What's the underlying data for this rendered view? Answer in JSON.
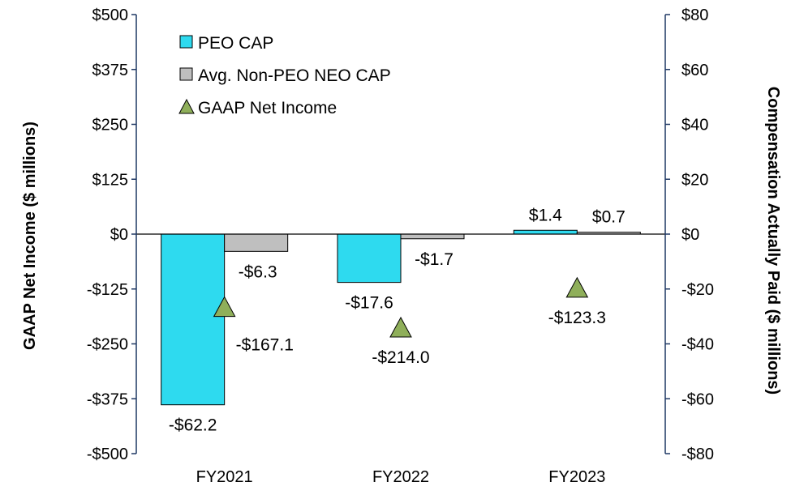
{
  "chart_data": {
    "type": "bar",
    "categories": [
      "FY2021",
      "FY2022",
      "FY2023"
    ],
    "series": [
      {
        "name": "PEO CAP",
        "axis": "right",
        "kind": "bar",
        "color": "#2EDAEF",
        "values": [
          -62.2,
          -17.6,
          1.4
        ],
        "labels": [
          "-$62.2",
          "-$17.6",
          "$1.4"
        ]
      },
      {
        "name": "Avg. Non-PEO NEO CAP",
        "axis": "right",
        "kind": "bar",
        "color": "#BFBFBF",
        "values": [
          -6.3,
          -1.7,
          0.7
        ],
        "labels": [
          "-$6.3",
          "-$1.7",
          "$0.7"
        ]
      },
      {
        "name": "GAAP Net Income",
        "axis": "left",
        "kind": "marker",
        "color": "#8FAF5A",
        "values": [
          -167.1,
          -214.0,
          -123.3
        ],
        "labels": [
          "-$167.1",
          "-$214.0",
          "-$123.3"
        ]
      }
    ],
    "y_left": {
      "label": "GAAP Net Income ($ millions)",
      "range": [
        -500,
        500
      ],
      "ticks": [
        500,
        375,
        250,
        125,
        0,
        -125,
        -250,
        -375,
        -500
      ],
      "tick_labels": [
        "$500",
        "$375",
        "$250",
        "$125",
        "$0",
        "-$125",
        "-$250",
        "-$375",
        "-$500"
      ]
    },
    "y_right": {
      "label": "Compensation Actually Paid ($ millions)",
      "range": [
        -80,
        80
      ],
      "ticks": [
        80,
        60,
        40,
        20,
        0,
        -20,
        -40,
        -60,
        -80
      ],
      "tick_labels": [
        "$80",
        "$60",
        "$40",
        "$20",
        "$0",
        "-$20",
        "-$40",
        "-$60",
        "-$80"
      ]
    },
    "axis_color": "#1F3864",
    "legend_position": "top-left",
    "grid": false
  }
}
